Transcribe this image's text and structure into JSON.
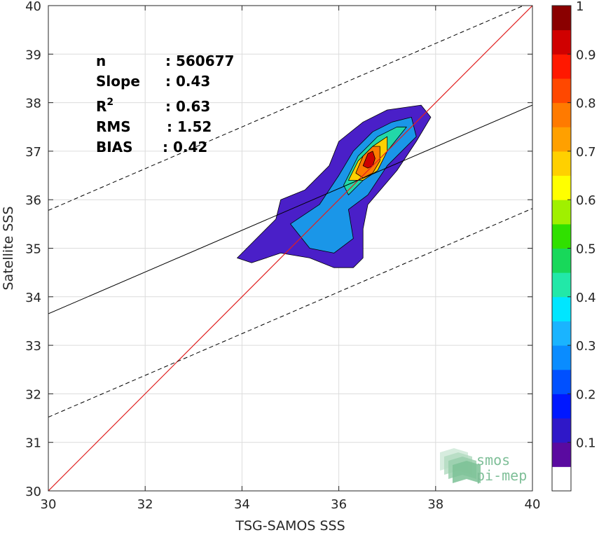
{
  "chart_data": {
    "type": "density-scatter",
    "xlabel": "TSG-SAMOS SSS",
    "ylabel": "Satellite SSS",
    "xlim": [
      30,
      40
    ],
    "ylim": [
      30,
      40
    ],
    "x_ticks": [
      "30",
      "32",
      "34",
      "36",
      "38",
      "40"
    ],
    "y_ticks": [
      "30",
      "31",
      "32",
      "33",
      "34",
      "35",
      "36",
      "37",
      "38",
      "39",
      "40"
    ],
    "grid": true,
    "stats": [
      {
        "label": "n",
        "value": ": 560677"
      },
      {
        "label": "Slope",
        "value": ": 0.43"
      },
      {
        "label": "R",
        "superscript": "2",
        "value": ": 0.63"
      },
      {
        "label": "RMS",
        "value": ": 1.52"
      },
      {
        "label": "BIAS",
        "value": ": 0.42"
      }
    ],
    "regression": {
      "slope": 0.43,
      "intercept_at_x30": 33.65
    },
    "identity_line": {
      "color": "#e02020"
    },
    "confidence_offset": 2.13,
    "density_contours": [
      {
        "level": 0.05,
        "color": "#4a1fc8",
        "outline": [
          [
            33.9,
            34.8
          ],
          [
            34.3,
            35.2
          ],
          [
            34.7,
            35.6
          ],
          [
            34.8,
            36.0
          ],
          [
            35.3,
            36.2
          ],
          [
            35.8,
            36.7
          ],
          [
            36.0,
            37.2
          ],
          [
            36.5,
            37.6
          ],
          [
            37.0,
            37.85
          ],
          [
            37.7,
            37.95
          ],
          [
            37.9,
            37.7
          ],
          [
            37.6,
            37.2
          ],
          [
            37.2,
            36.6
          ],
          [
            36.6,
            35.9
          ],
          [
            36.5,
            35.4
          ],
          [
            36.5,
            34.8
          ],
          [
            36.3,
            34.6
          ],
          [
            35.9,
            34.6
          ],
          [
            35.4,
            34.8
          ],
          [
            34.8,
            34.9
          ],
          [
            34.2,
            34.7
          ]
        ]
      },
      {
        "level": 0.25,
        "color": "#1a96e8",
        "outline": [
          [
            35.0,
            35.5
          ],
          [
            35.6,
            35.9
          ],
          [
            36.0,
            36.5
          ],
          [
            36.3,
            37.0
          ],
          [
            36.7,
            37.4
          ],
          [
            37.1,
            37.6
          ],
          [
            37.5,
            37.7
          ],
          [
            37.6,
            37.3
          ],
          [
            37.0,
            36.7
          ],
          [
            36.6,
            36.1
          ],
          [
            36.2,
            35.8
          ],
          [
            36.3,
            35.2
          ],
          [
            35.9,
            34.9
          ],
          [
            35.4,
            35.0
          ]
        ]
      },
      {
        "level": 0.45,
        "color": "#22d8a8",
        "outline": [
          [
            36.1,
            36.3
          ],
          [
            36.4,
            36.9
          ],
          [
            36.8,
            37.3
          ],
          [
            37.2,
            37.5
          ],
          [
            37.4,
            37.5
          ],
          [
            37.0,
            37.0
          ],
          [
            36.6,
            36.5
          ],
          [
            36.2,
            36.1
          ]
        ]
      },
      {
        "level": 0.65,
        "color": "#ffd000",
        "outline": [
          [
            36.2,
            36.4
          ],
          [
            36.4,
            36.8
          ],
          [
            36.7,
            37.1
          ],
          [
            37.0,
            37.3
          ],
          [
            37.0,
            37.0
          ],
          [
            36.8,
            36.6
          ],
          [
            36.5,
            36.4
          ]
        ]
      },
      {
        "level": 0.8,
        "color": "#ff7a00",
        "outline": [
          [
            36.35,
            36.55
          ],
          [
            36.5,
            36.9
          ],
          [
            36.7,
            37.1
          ],
          [
            36.85,
            37.1
          ],
          [
            36.85,
            36.8
          ],
          [
            36.7,
            36.55
          ],
          [
            36.5,
            36.45
          ]
        ]
      },
      {
        "level": 0.95,
        "color": "#cc0000",
        "outline": [
          [
            36.5,
            36.7
          ],
          [
            36.6,
            36.95
          ],
          [
            36.7,
            37.0
          ],
          [
            36.75,
            36.85
          ],
          [
            36.7,
            36.7
          ],
          [
            36.6,
            36.65
          ]
        ]
      }
    ],
    "colorbar": {
      "ticks": [
        "0.1",
        "0.2",
        "0.3",
        "0.4",
        "0.5",
        "0.6",
        "0.7",
        "0.8",
        "0.9",
        "1"
      ],
      "colors": [
        "#ffffff",
        "#5a0aa0",
        "#2f18c8",
        "#0018ff",
        "#0050ff",
        "#0a8cff",
        "#1ab4ff",
        "#00e6ff",
        "#22e8a8",
        "#18d85a",
        "#30e000",
        "#a0f000",
        "#ffff00",
        "#ffd000",
        "#ffa000",
        "#ff7a00",
        "#ff4800",
        "#ff1800",
        "#d00000",
        "#8a0000"
      ]
    }
  },
  "logo": {
    "line1": "smos",
    "line2": "pi-mep"
  }
}
